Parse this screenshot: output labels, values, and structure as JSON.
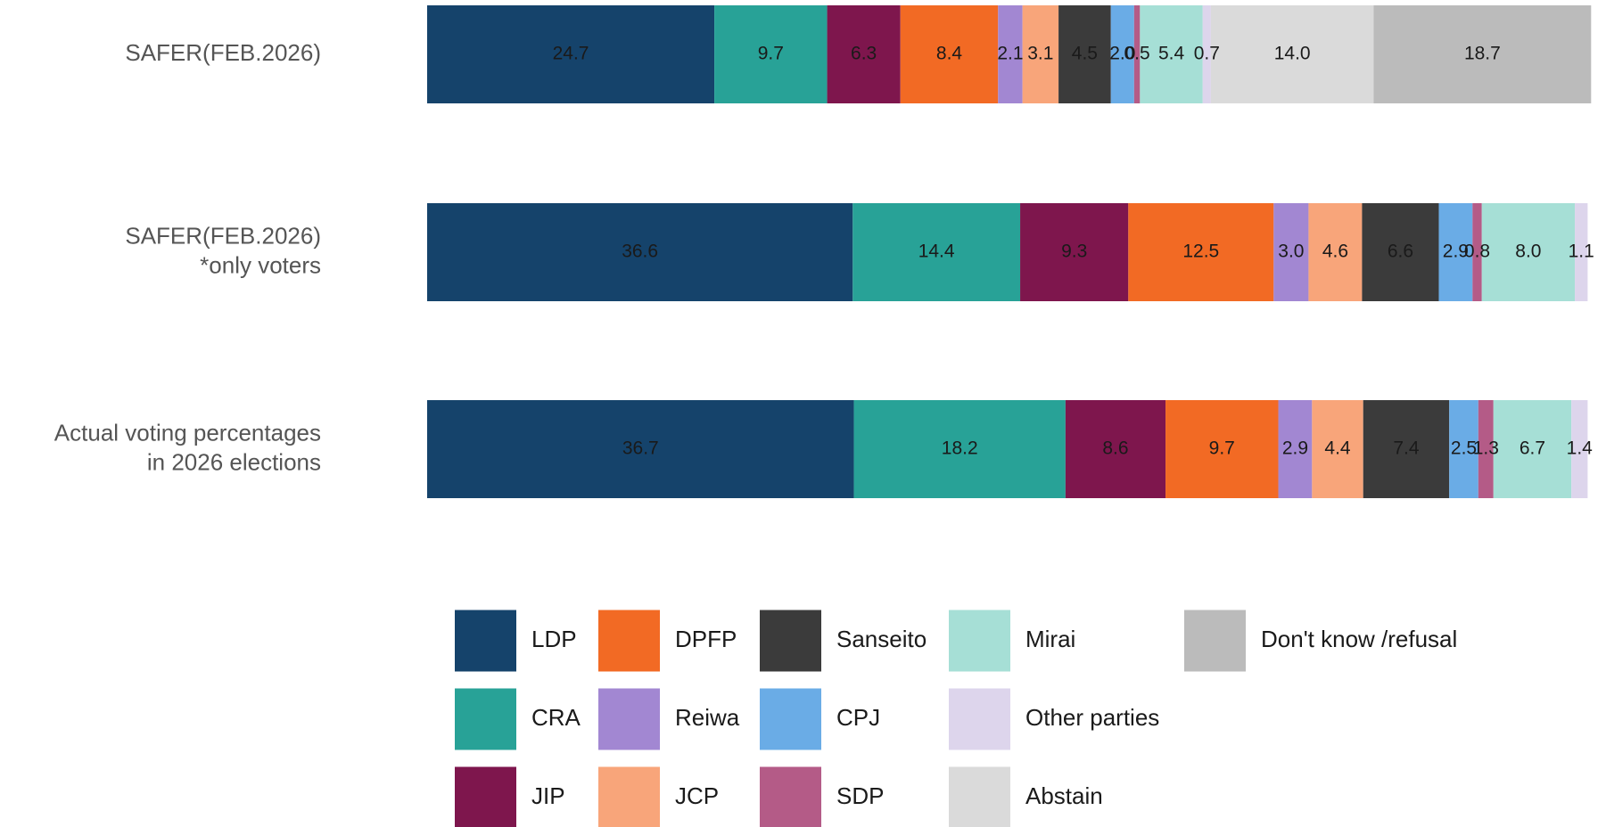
{
  "chart_data": {
    "type": "stacked-barh",
    "categories": [
      [
        "SAFER(FEB.2026)"
      ],
      [
        "SAFER(FEB.2026)",
        "*only voters"
      ],
      [
        "Actual voting percentages",
        "in 2026 elections"
      ]
    ],
    "xlim": [
      0,
      100
    ],
    "series": [
      {
        "name": "LDP",
        "color": "#15436b",
        "values": [
          24.7,
          36.6,
          36.7
        ],
        "value_labels": [
          "24.7",
          "36.6",
          "36.7"
        ]
      },
      {
        "name": "CRA",
        "color": "#28a297",
        "values": [
          9.7,
          14.4,
          18.2
        ],
        "value_labels": [
          "9.7",
          "14.4",
          "18.2"
        ]
      },
      {
        "name": "JIP",
        "color": "#7e164d",
        "values": [
          6.3,
          9.3,
          8.6
        ],
        "value_labels": [
          "6.3",
          "9.3",
          "8.6"
        ]
      },
      {
        "name": "DPFP",
        "color": "#f26a24",
        "values": [
          8.4,
          12.5,
          9.7
        ],
        "value_labels": [
          "8.4",
          "12.5",
          "9.7"
        ]
      },
      {
        "name": "Reiwa",
        "color": "#a287d2",
        "values": [
          2.1,
          3.0,
          2.9
        ],
        "value_labels": [
          "2.1",
          "3.0",
          "2.9"
        ]
      },
      {
        "name": "JCP",
        "color": "#f8a57a",
        "values": [
          3.1,
          4.6,
          4.4
        ],
        "value_labels": [
          "3.1",
          "4.6",
          "4.4"
        ]
      },
      {
        "name": "Sanseito",
        "color": "#3b3b3b",
        "values": [
          4.5,
          6.6,
          7.4
        ],
        "value_labels": [
          "4.5",
          "6.6",
          "7.4"
        ]
      },
      {
        "name": "CPJ",
        "color": "#6aace6",
        "values": [
          2.0,
          2.9,
          2.5
        ],
        "value_labels": [
          "2.0",
          "2.9",
          "2.5"
        ]
      },
      {
        "name": "SDP",
        "color": "#b45b87",
        "values": [
          0.5,
          0.8,
          1.3
        ],
        "value_labels": [
          "0.5",
          "0.8",
          "1.3"
        ]
      },
      {
        "name": "Mirai",
        "color": "#a6dfd6",
        "values": [
          5.4,
          8.0,
          6.7
        ],
        "value_labels": [
          "5.4",
          "8.0",
          "6.7"
        ]
      },
      {
        "name": "Other parties",
        "color": "#ddd5ec",
        "values": [
          0.7,
          1.1,
          1.4
        ],
        "value_labels": [
          "0.7",
          "1.1",
          "1.4"
        ]
      },
      {
        "name": "Abstain",
        "color": "#dadada",
        "values": [
          14.0,
          null,
          null
        ],
        "value_labels": [
          "14.0",
          null,
          null
        ]
      },
      {
        "name": "Don't know /refusal",
        "color": "#bbbbbb",
        "values": [
          18.7,
          null,
          null
        ],
        "value_labels": [
          "18.7",
          null,
          null
        ]
      }
    ]
  }
}
